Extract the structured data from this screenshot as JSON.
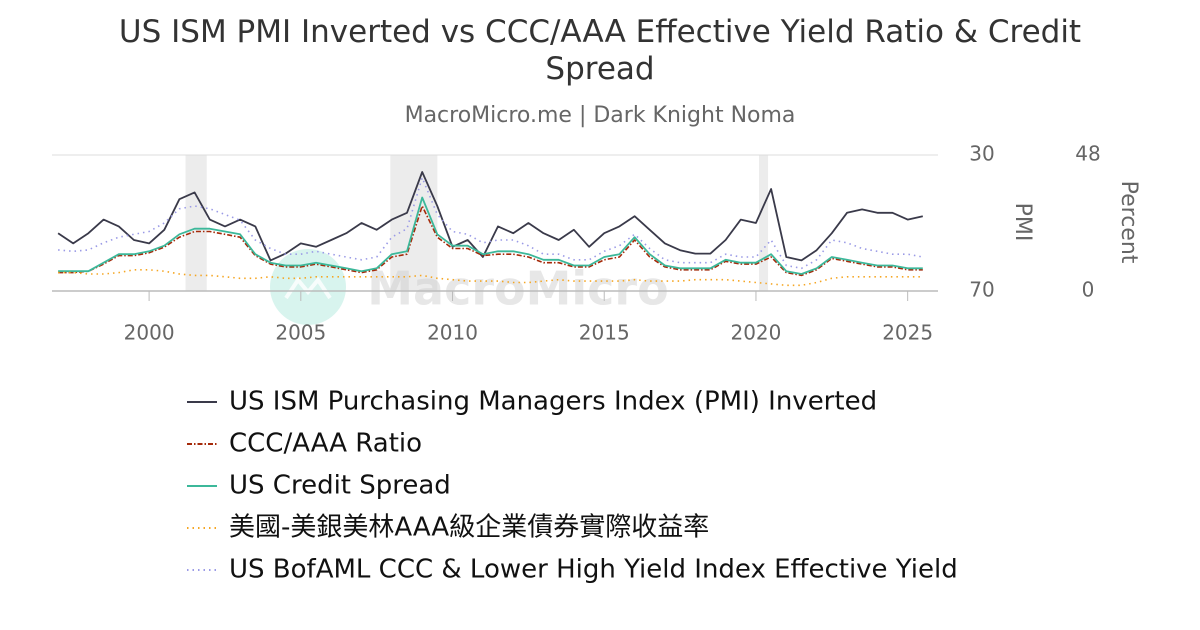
{
  "chart_data": {
    "type": "line",
    "title": "US ISM PMI Inverted vs CCC/AAA Effective Yield Ratio & Credit Spread",
    "subtitle": "MacroMicro.me | Dark Knight Noma",
    "watermark": "MacroMicro",
    "y_label": "PMI",
    "y2_label": "Percent",
    "xlim": [
      1996.8,
      2026.0
    ],
    "xticks": [
      2000,
      2005,
      2010,
      2015,
      2020,
      2025
    ],
    "ylim": [
      70,
      30
    ],
    "yticks": [
      30,
      70
    ],
    "y2lim": [
      0,
      48
    ],
    "y2ticks": [
      0,
      48
    ],
    "grid": true,
    "shaded_periods": [
      [
        2001.2,
        2001.9
      ],
      [
        2007.95,
        2009.5
      ],
      [
        2020.1,
        2020.4
      ]
    ],
    "x": [
      1997.0,
      1997.5,
      1998.0,
      1998.5,
      1999.0,
      1999.5,
      2000.0,
      2000.5,
      2001.0,
      2001.5,
      2002.0,
      2002.5,
      2003.0,
      2003.5,
      2004.0,
      2004.5,
      2005.0,
      2005.5,
      2006.0,
      2006.5,
      2007.0,
      2007.5,
      2008.0,
      2008.5,
      2009.0,
      2009.5,
      2010.0,
      2010.5,
      2011.0,
      2011.5,
      2012.0,
      2012.5,
      2013.0,
      2013.5,
      2014.0,
      2014.5,
      2015.0,
      2015.5,
      2016.0,
      2016.5,
      2017.0,
      2017.5,
      2018.0,
      2018.5,
      2019.0,
      2019.5,
      2020.0,
      2020.5,
      2021.0,
      2021.5,
      2022.0,
      2022.5,
      2023.0,
      2023.5,
      2024.0,
      2024.5,
      2025.0,
      2025.5
    ],
    "series": [
      {
        "name": "US ISM Purchasing Managers Index (PMI) Inverted",
        "color": "#3a3a4a",
        "style": "solid",
        "axis": "y",
        "values": [
          53,
          56,
          53,
          49,
          51,
          55,
          56,
          52,
          43,
          41,
          49,
          51,
          49,
          51,
          61,
          59,
          56,
          57,
          55,
          53,
          50,
          52,
          49,
          47,
          35,
          45,
          57,
          55,
          60,
          51,
          53,
          50,
          53,
          55,
          52,
          57,
          53,
          51,
          48,
          52,
          56,
          58,
          59,
          59,
          55,
          49,
          50,
          40,
          60,
          61,
          58,
          53,
          47,
          46,
          47,
          47,
          49,
          48
        ]
      },
      {
        "name": "CCC/AAA Ratio",
        "color": "#a52a0a",
        "style": "dashdot",
        "axis": "y2",
        "values": [
          6.5,
          6.5,
          7,
          9.5,
          12.5,
          12.5,
          13.5,
          15.5,
          19,
          21,
          21,
          20,
          19,
          12.5,
          9.5,
          8.5,
          8.5,
          9.5,
          8.5,
          7.5,
          6.5,
          7.5,
          12,
          13,
          30,
          19,
          15,
          15,
          12.5,
          13,
          13,
          12,
          10,
          10,
          8.5,
          8.5,
          11,
          12,
          18,
          12,
          8.5,
          7.5,
          7.5,
          7.5,
          10.5,
          9.5,
          9.5,
          12,
          6.5,
          5.5,
          7.5,
          11.5,
          10.5,
          9.5,
          8.5,
          8.5,
          7.5,
          7.5
        ]
      },
      {
        "name": "US Credit Spread",
        "color": "#3cb89a",
        "style": "solid",
        "axis": "y2",
        "values": [
          7,
          7,
          7,
          10,
          13,
          13,
          14,
          16,
          20,
          22,
          22,
          21,
          20,
          13,
          10,
          9,
          9,
          10,
          9,
          8,
          7,
          8,
          13,
          14,
          33,
          20,
          16,
          16,
          13,
          14,
          14,
          13,
          11,
          11,
          9,
          9,
          12,
          13,
          19,
          13,
          9,
          8,
          8,
          8,
          11,
          10,
          10,
          13,
          7,
          6,
          8,
          12,
          11,
          10,
          9,
          9,
          8,
          8
        ]
      },
      {
        "name": "美國-美銀美林AAA級企業債券實際收益率",
        "color": "#f5a623",
        "style": "dotted",
        "axis": "y2",
        "values": [
          6.5,
          6.5,
          6,
          6,
          6.5,
          7.5,
          7.5,
          7,
          6,
          5.5,
          5.5,
          5,
          4.5,
          4.5,
          5,
          4.5,
          4.5,
          5,
          5,
          5,
          5,
          5,
          5,
          5,
          5.5,
          4.5,
          4,
          3.5,
          3.5,
          3.5,
          3,
          3,
          3.5,
          4,
          3.5,
          3.5,
          3.5,
          3.5,
          4,
          3.5,
          3.5,
          3.5,
          4,
          4,
          4,
          3.5,
          3,
          2.5,
          2,
          2,
          3,
          4.5,
          5,
          5,
          5,
          5,
          5,
          5
        ]
      },
      {
        "name": "US BofAML CCC & Lower High Yield Index Effective Yield",
        "color": "#9a9ae6",
        "style": "dotted",
        "axis": "y2",
        "values": [
          14.5,
          14,
          14.5,
          17,
          19,
          20,
          21,
          24,
          29,
          30,
          29,
          27,
          25,
          18,
          15,
          13,
          13,
          14,
          13,
          12,
          11,
          12,
          19,
          22,
          40,
          27,
          21,
          20,
          17,
          18,
          18,
          16,
          13,
          13,
          11,
          11,
          14,
          16,
          20,
          15,
          11,
          10,
          10,
          10,
          13,
          12,
          12,
          18,
          9,
          8,
          11,
          18,
          17,
          15,
          14,
          13,
          13,
          12
        ]
      }
    ]
  }
}
